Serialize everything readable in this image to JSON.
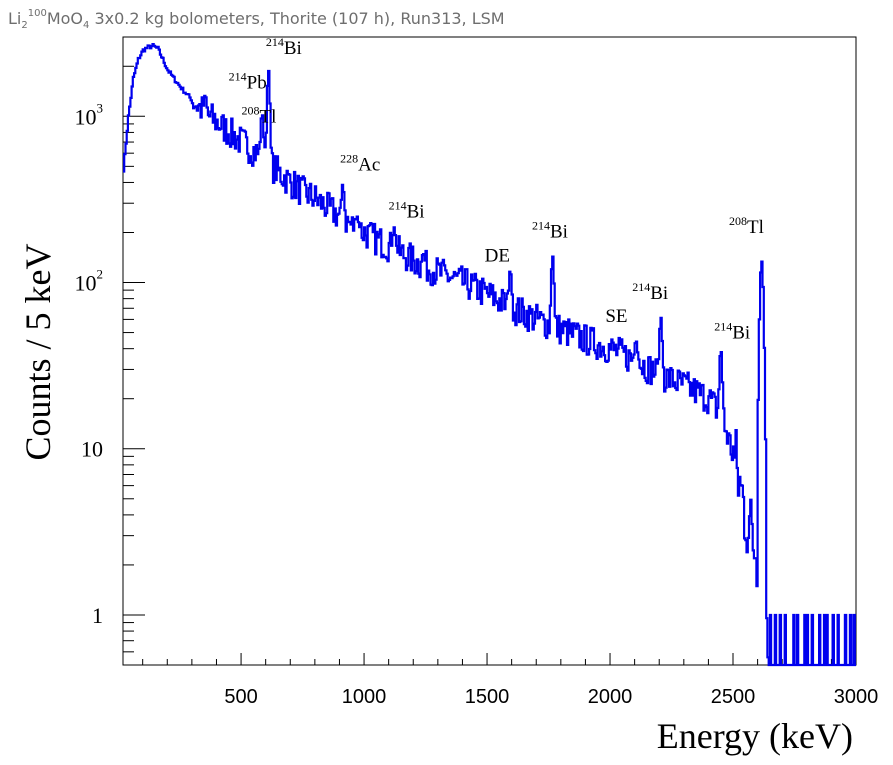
{
  "chart_data": {
    "type": "line",
    "title": {
      "prefix": "Li",
      "sub1": "2",
      "sup": "100",
      "mid": "MoO",
      "sub2": "4",
      "rest": " 3x0.2 kg bolometers, Thorite (107 h), Run313, LSM"
    },
    "xlabel": "Energy (keV)",
    "ylabel": "Counts / 5 keV",
    "xlim": [
      20,
      3000
    ],
    "ylim": [
      0.5,
      3000
    ],
    "y_scale": "log",
    "line_color": "#0000ee",
    "x_ticks": [
      {
        "value": 500,
        "label": "500"
      },
      {
        "value": 1000,
        "label": "1000"
      },
      {
        "value": 1500,
        "label": "1500"
      },
      {
        "value": 2000,
        "label": "2000"
      },
      {
        "value": 2500,
        "label": "2500"
      },
      {
        "value": 3000,
        "label": "3000"
      }
    ],
    "y_ticks": [
      {
        "value": 1,
        "base": "1",
        "exp": ""
      },
      {
        "value": 10,
        "base": "10",
        "exp": ""
      },
      {
        "value": 100,
        "base": "10",
        "exp": "2"
      },
      {
        "value": 1000,
        "base": "10",
        "exp": "3"
      }
    ],
    "series": [
      {
        "name": "spectrum",
        "continuum": [
          [
            20,
            480
          ],
          [
            40,
            1000
          ],
          [
            60,
            1700
          ],
          [
            80,
            2200
          ],
          [
            100,
            2500
          ],
          [
            120,
            2600
          ],
          [
            140,
            2650
          ],
          [
            160,
            2550
          ],
          [
            180,
            2200
          ],
          [
            200,
            1900
          ],
          [
            230,
            1650
          ],
          [
            260,
            1450
          ],
          [
            300,
            1250
          ],
          [
            350,
            1050
          ],
          [
            400,
            920
          ],
          [
            450,
            800
          ],
          [
            500,
            700
          ],
          [
            550,
            620
          ],
          [
            600,
            540
          ],
          [
            650,
            460
          ],
          [
            700,
            400
          ],
          [
            750,
            350
          ],
          [
            800,
            320
          ],
          [
            850,
            280
          ],
          [
            900,
            250
          ],
          [
            950,
            220
          ],
          [
            1000,
            200
          ],
          [
            1050,
            180
          ],
          [
            1100,
            165
          ],
          [
            1150,
            150
          ],
          [
            1200,
            135
          ],
          [
            1300,
            115
          ],
          [
            1400,
            100
          ],
          [
            1500,
            85
          ],
          [
            1600,
            70
          ],
          [
            1700,
            60
          ],
          [
            1800,
            52
          ],
          [
            1900,
            45
          ],
          [
            2000,
            40
          ],
          [
            2100,
            34
          ],
          [
            2200,
            28
          ],
          [
            2300,
            24
          ],
          [
            2400,
            20
          ],
          [
            2450,
            16
          ],
          [
            2500,
            9
          ],
          [
            2550,
            4
          ],
          [
            2600,
            2.2
          ],
          [
            2640,
            0.9
          ],
          [
            2700,
            0.5
          ],
          [
            3000,
            0.5
          ]
        ],
        "peaks": [
          {
            "energy": 352,
            "counts": 1350
          },
          {
            "energy": 510,
            "counts": 820
          },
          {
            "energy": 583,
            "counts": 1050
          },
          {
            "energy": 609,
            "counts": 1900
          },
          {
            "energy": 911,
            "counts": 390
          },
          {
            "energy": 969,
            "counts": 250
          },
          {
            "energy": 1120,
            "counts": 215
          },
          {
            "energy": 1238,
            "counts": 150
          },
          {
            "energy": 1592,
            "counts": 120
          },
          {
            "energy": 1764,
            "counts": 145
          },
          {
            "energy": 2103,
            "counts": 45
          },
          {
            "energy": 2204,
            "counts": 62
          },
          {
            "energy": 2448,
            "counts": 40
          },
          {
            "energy": 2614,
            "counts": 135
          }
        ],
        "tail_single_counts": [
          [
            2648,
            1
          ],
          [
            2670,
            1
          ],
          [
            2690,
            1
          ],
          [
            2712,
            1
          ],
          [
            2745,
            1
          ],
          [
            2760,
            1
          ],
          [
            2790,
            1
          ],
          [
            2800,
            1
          ],
          [
            2820,
            1
          ],
          [
            2850,
            1
          ],
          [
            2870,
            1
          ],
          [
            2880,
            1
          ],
          [
            2905,
            1
          ],
          [
            2925,
            1
          ],
          [
            2955,
            1
          ],
          [
            2975,
            1
          ],
          [
            2990,
            1
          ]
        ]
      }
    ],
    "annotations": [
      {
        "id": "pb214",
        "sup": "214",
        "label": "Pb",
        "energy": 352
      },
      {
        "id": "tl208a",
        "sup": "208",
        "label": "Tl",
        "energy": 510
      },
      {
        "id": "bi214a",
        "sup": "214",
        "label": "Bi",
        "energy": 609
      },
      {
        "id": "ac228",
        "sup": "228",
        "label": "Ac",
        "energy": 911
      },
      {
        "id": "bi214b",
        "sup": "214",
        "label": "Bi",
        "energy": 1120
      },
      {
        "id": "de",
        "sup": "",
        "label": "DE",
        "energy": 1592
      },
      {
        "id": "bi214c",
        "sup": "214",
        "label": "Bi",
        "energy": 1764
      },
      {
        "id": "se",
        "sup": "",
        "label": "SE",
        "energy": 2103
      },
      {
        "id": "bi214d",
        "sup": "214",
        "label": "Bi",
        "energy": 2204
      },
      {
        "id": "bi214e",
        "sup": "214",
        "label": "Bi",
        "energy": 2448
      },
      {
        "id": "tl208b",
        "sup": "208",
        "label": "Tl",
        "energy": 2614
      }
    ]
  }
}
